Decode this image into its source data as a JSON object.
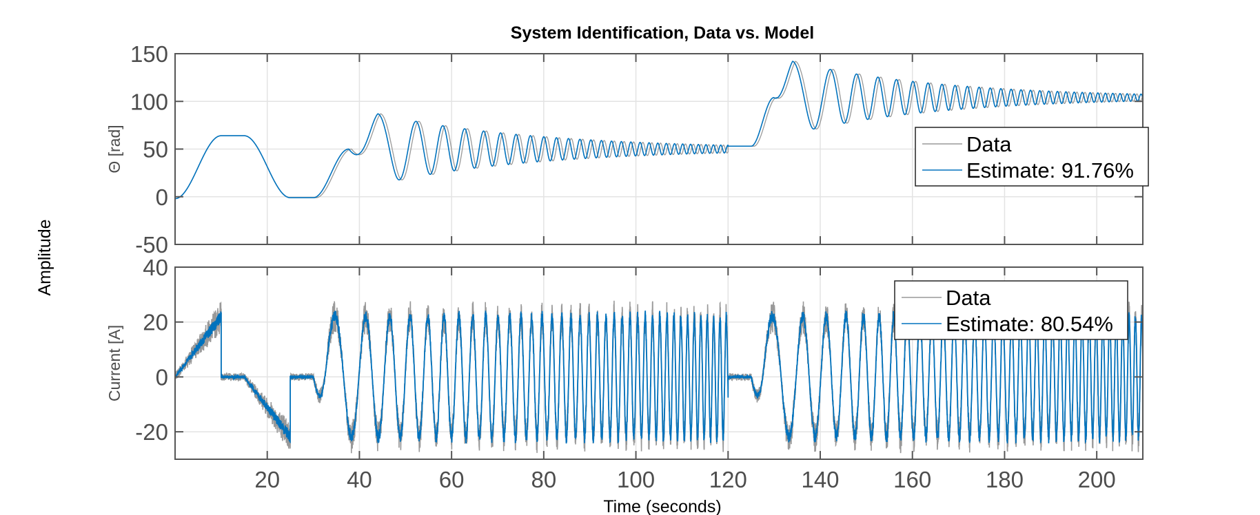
{
  "chart_data": {
    "type": "line",
    "title": "System Identification, Data vs. Model",
    "ylabel_shared": "Amplitude",
    "xlabel": "Time (seconds)",
    "xlim": [
      0,
      210
    ],
    "xticks": [
      20,
      40,
      60,
      80,
      100,
      120,
      140,
      160,
      180,
      200
    ],
    "colors": {
      "data": "#999999",
      "estimate": "#0072bd"
    },
    "grid": true,
    "subplots": [
      {
        "id": "theta",
        "ylabel": "Θ [rad]",
        "ylim": [
          -50,
          150
        ],
        "yticks": [
          -50,
          0,
          50,
          100,
          150
        ],
        "legend_placement": "right",
        "series": [
          {
            "name": "Data"
          },
          {
            "name": "Estimate: 91.76%"
          }
        ],
        "segments": [
          {
            "t": [
              0,
              10
            ],
            "kind": "ramp",
            "from": -2,
            "to": 64
          },
          {
            "t": [
              10,
              15
            ],
            "kind": "hold",
            "value": 64
          },
          {
            "t": [
              15,
              25
            ],
            "kind": "ramp",
            "from": 64,
            "to": -1
          },
          {
            "t": [
              25,
              30
            ],
            "kind": "hold",
            "value": -1
          },
          {
            "t": [
              30,
              120
            ],
            "kind": "chirp",
            "start": -1,
            "peak_time": 44,
            "peak": 87,
            "settle": 50,
            "f0": 0.09,
            "f1": 0.75
          },
          {
            "t": [
              120,
              125
            ],
            "kind": "hold",
            "value": 53
          },
          {
            "t": [
              125,
              210
            ],
            "kind": "chirp",
            "start": 53,
            "peak_time": 134,
            "peak": 142,
            "settle": 104,
            "f0": 0.09,
            "f1": 0.75
          }
        ]
      },
      {
        "id": "current",
        "ylabel": "Current [A]",
        "ylim": [
          -30,
          40
        ],
        "yticks": [
          -20,
          0,
          20,
          40
        ],
        "legend_placement": "top-right",
        "series": [
          {
            "name": "Data"
          },
          {
            "name": "Estimate: 80.54%"
          }
        ],
        "segments": [
          {
            "t": [
              0,
              10
            ],
            "kind": "ramp",
            "from": 0,
            "to": 22
          },
          {
            "t": [
              10,
              15
            ],
            "kind": "hold",
            "value": 0
          },
          {
            "t": [
              15,
              25
            ],
            "kind": "ramp",
            "from": 0,
            "to": -22
          },
          {
            "t": [
              25,
              30
            ],
            "kind": "hold",
            "value": 0
          },
          {
            "t": [
              30,
              120
            ],
            "kind": "sine-chirp",
            "amplitude": 22,
            "f0": 0.09,
            "f1": 0.75
          },
          {
            "t": [
              120,
              125
            ],
            "kind": "hold",
            "value": 0
          },
          {
            "t": [
              125,
              210
            ],
            "kind": "sine-chirp",
            "amplitude": 22,
            "f0": 0.09,
            "f1": 0.75
          }
        ]
      }
    ]
  }
}
